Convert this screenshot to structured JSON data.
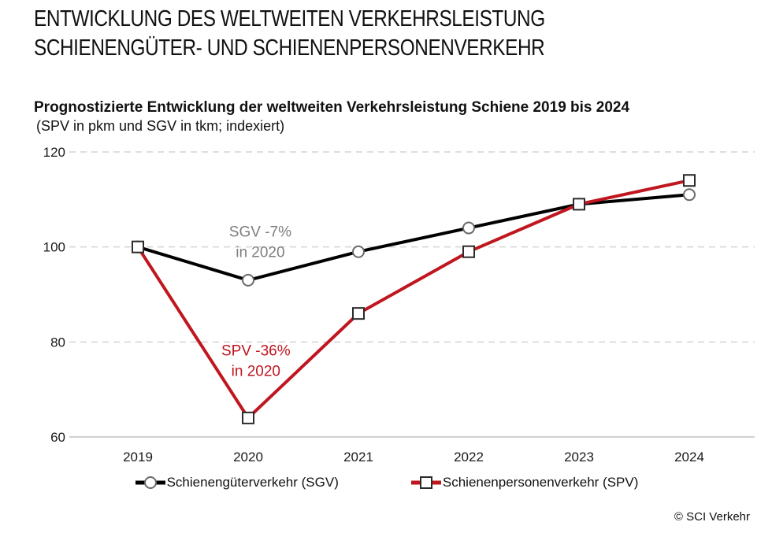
{
  "header": {
    "title_line1": "ENTWICKLUNG DES WELTWEITEN VERKEHRSLEISTUNG",
    "title_line2": "SCHIENENGÜTER- UND SCHIENENPERSONENVERKEHR"
  },
  "chart": {
    "subtitle": "Prognostizierte Entwicklung der weltweiten Verkehrsleistung Schiene 2019 bis 2024",
    "subsubtitle": "(SPV in pkm und SGV in tkm; indexiert)",
    "footer_credit": "© SCI Verkehr"
  },
  "chart_data": {
    "type": "line",
    "title": "Prognostizierte Entwicklung der weltweiten Verkehrsleistung Schiene 2019 bis 2024",
    "subtitle": "(SPV in pkm und SGV in tkm; indexiert)",
    "categories": [
      "2019",
      "2020",
      "2021",
      "2022",
      "2023",
      "2024"
    ],
    "series": [
      {
        "name": "Schienengüterverkehr (SGV)",
        "color": "#000000",
        "marker": "circle",
        "marker_stroke": "#6a6a6a",
        "values": [
          100,
          93,
          99,
          104,
          109,
          111
        ]
      },
      {
        "name": "Schienenpersonenverkehr (SPV)",
        "color": "#C0161F",
        "marker": "square",
        "marker_stroke": "#2b2b2b",
        "values": [
          100,
          64,
          86,
          99,
          109,
          114
        ]
      }
    ],
    "annotations": [
      {
        "lines": [
          "SGV -7%",
          "in 2020"
        ],
        "color": "#7f7f7f",
        "x_index": 1.11,
        "y_value": 101
      },
      {
        "lines": [
          "SPV -36%",
          "in 2020"
        ],
        "color": "#C0161F",
        "x_index": 1.07,
        "y_value": 76
      }
    ],
    "ylim": [
      60,
      120
    ],
    "yticks": [
      60,
      80,
      100,
      120
    ],
    "xlabel": "",
    "ylabel": "",
    "grid": "horizontal-dashed",
    "legend_position": "bottom",
    "colors": {
      "grid_dashed": "#d4d4d4",
      "grid_baseline": "#c0c0c0",
      "tick_label": "#1a1a1a"
    }
  }
}
